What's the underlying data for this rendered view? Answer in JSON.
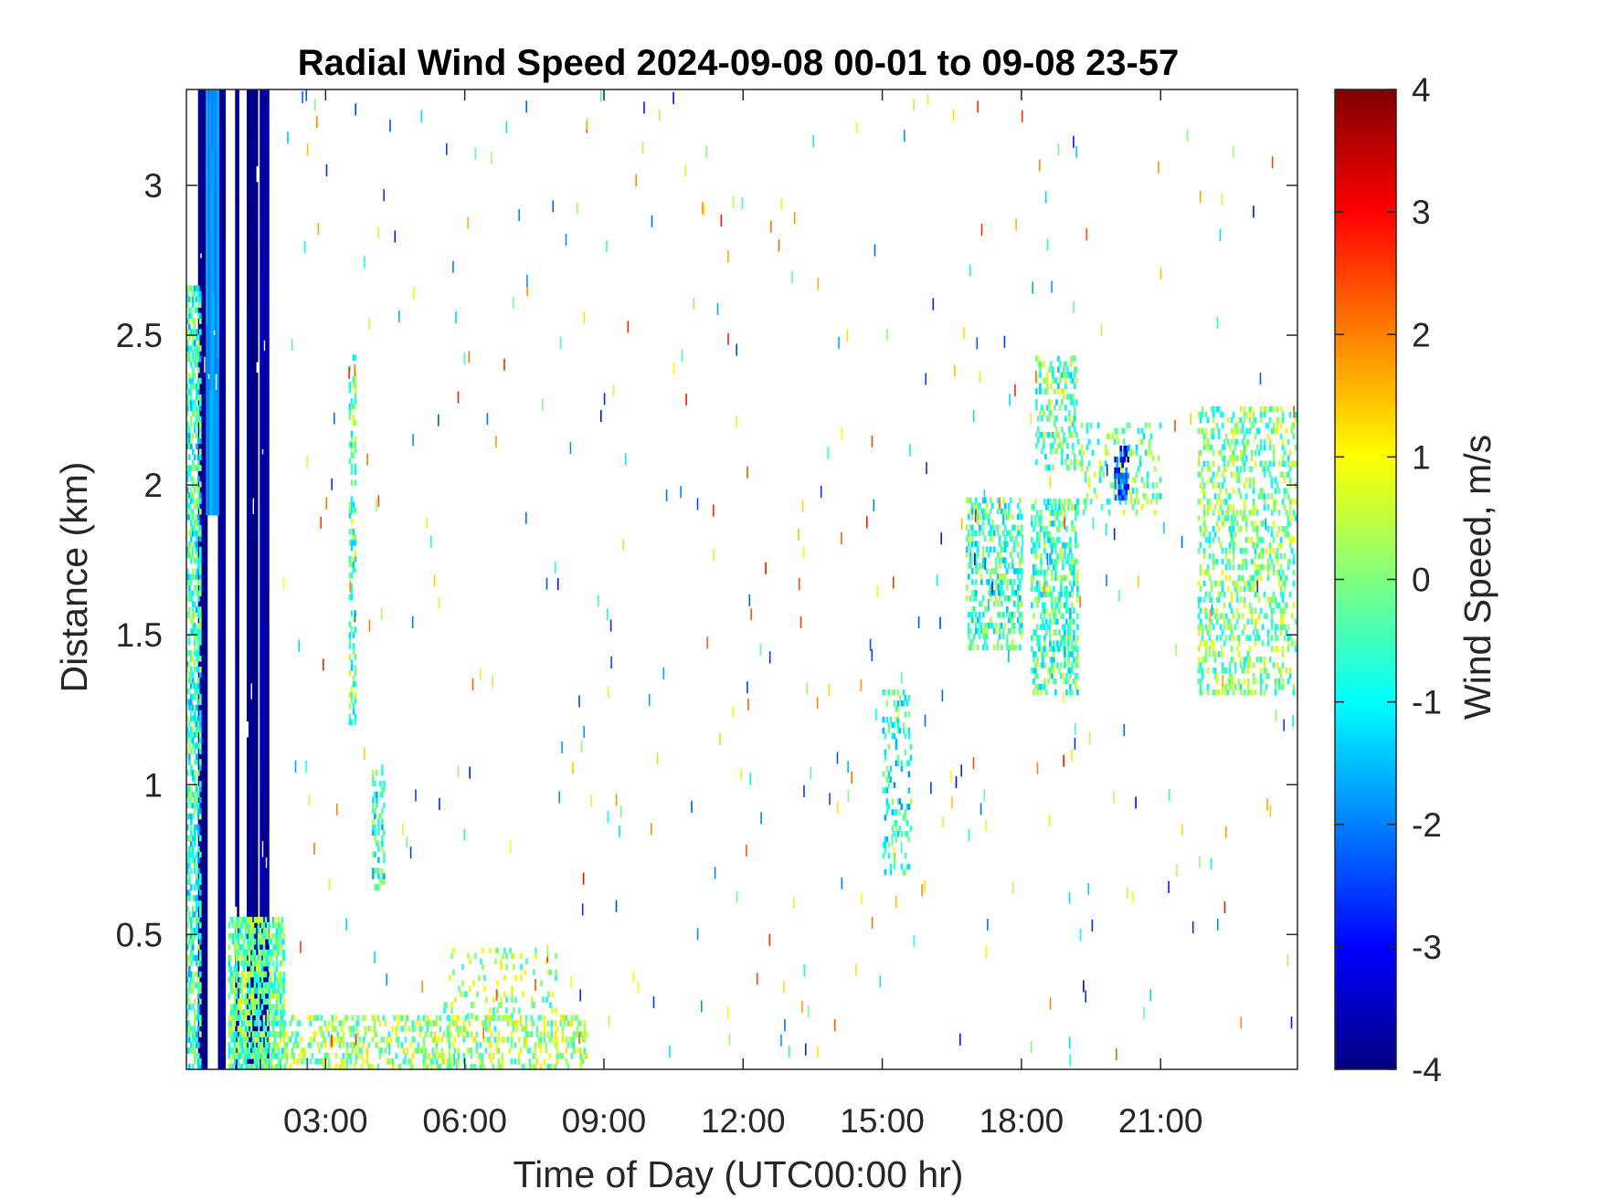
{
  "chart_data": {
    "type": "heatmap",
    "title": "Radial Wind Speed 2024-09-08 00-01 to 09-08 23-57",
    "xlabel": "Time of Day (UTC00:00 hr)",
    "ylabel": "Distance (km)",
    "colorbar_label": "Wind Speed, m/s",
    "xlim_hours": [
      0.0,
      23.95
    ],
    "ylim_km": [
      0.05,
      3.32
    ],
    "clim": [
      -4,
      4
    ],
    "colormap": "jet",
    "x_ticks": [
      {
        "value": 3,
        "label": "03:00"
      },
      {
        "value": 6,
        "label": "06:00"
      },
      {
        "value": 9,
        "label": "09:00"
      },
      {
        "value": 12,
        "label": "12:00"
      },
      {
        "value": 15,
        "label": "15:00"
      },
      {
        "value": 18,
        "label": "18:00"
      },
      {
        "value": 21,
        "label": "21:00"
      }
    ],
    "y_ticks": [
      {
        "value": 0.5,
        "label": "0.5"
      },
      {
        "value": 1,
        "label": "1"
      },
      {
        "value": 1.5,
        "label": "1.5"
      },
      {
        "value": 2,
        "label": "2"
      },
      {
        "value": 2.5,
        "label": "2.5"
      },
      {
        "value": 3,
        "label": "3"
      }
    ],
    "colorbar_ticks": [
      {
        "value": 4,
        "label": "4"
      },
      {
        "value": 3,
        "label": "3"
      },
      {
        "value": 2,
        "label": "2"
      },
      {
        "value": 1,
        "label": "1"
      },
      {
        "value": 0,
        "label": "0"
      },
      {
        "value": -1,
        "label": "-1"
      },
      {
        "value": -2,
        "label": "-2"
      },
      {
        "value": -3,
        "label": "-3"
      },
      {
        "value": -4,
        "label": "-4"
      }
    ],
    "strong_bands": [
      {
        "t0": 0.25,
        "t1": 0.42,
        "d0": 0.05,
        "d1": 3.32,
        "v": -3.9
      },
      {
        "t0": 0.68,
        "t1": 0.8,
        "d0": 0.05,
        "d1": 3.32,
        "v": -3.8
      },
      {
        "t0": 1.05,
        "t1": 1.12,
        "d0": 0.05,
        "d1": 3.32,
        "v": -3.9
      },
      {
        "t0": 1.3,
        "t1": 1.52,
        "d0": 0.05,
        "d1": 3.32,
        "v": -3.95
      },
      {
        "t0": 1.58,
        "t1": 1.75,
        "d0": 0.05,
        "d1": 3.32,
        "v": -3.7
      },
      {
        "t0": 0.42,
        "t1": 0.68,
        "d0": 1.9,
        "d1": 3.32,
        "v": -1.8
      }
    ],
    "clusters": [
      {
        "t0": 0.0,
        "t1": 0.3,
        "d0": 0.05,
        "d1": 2.65,
        "v": -0.6,
        "density": 0.55
      },
      {
        "t0": 0.9,
        "t1": 2.1,
        "d0": 0.05,
        "d1": 0.55,
        "v": -0.2,
        "density": 0.7
      },
      {
        "t0": 2.1,
        "t1": 8.6,
        "d0": 0.05,
        "d1": 0.22,
        "v": 0.2,
        "density": 0.35
      },
      {
        "t0": 5.5,
        "t1": 8.0,
        "d0": 0.22,
        "d1": 0.45,
        "v": 0.1,
        "density": 0.12
      },
      {
        "t0": 3.5,
        "t1": 3.65,
        "d0": 1.2,
        "d1": 2.42,
        "v": -0.3,
        "density": 0.4
      },
      {
        "t0": 4.0,
        "t1": 4.25,
        "d0": 0.65,
        "d1": 1.05,
        "v": -0.6,
        "density": 0.35
      },
      {
        "t0": 15.0,
        "t1": 15.6,
        "d0": 0.7,
        "d1": 1.3,
        "v": -0.8,
        "density": 0.2
      },
      {
        "t0": 16.8,
        "t1": 18.0,
        "d0": 1.45,
        "d1": 1.95,
        "v": -0.5,
        "density": 0.4
      },
      {
        "t0": 18.2,
        "t1": 19.2,
        "d0": 1.3,
        "d1": 1.95,
        "v": -0.4,
        "density": 0.45
      },
      {
        "t0": 18.3,
        "t1": 19.2,
        "d0": 2.05,
        "d1": 2.42,
        "v": -0.3,
        "density": 0.35
      },
      {
        "t0": 19.2,
        "t1": 21.0,
        "d0": 1.9,
        "d1": 2.2,
        "v": -0.2,
        "density": 0.2
      },
      {
        "t0": 20.0,
        "t1": 20.3,
        "d0": 1.95,
        "d1": 2.12,
        "v": -2.6,
        "density": 0.6
      },
      {
        "t0": 21.8,
        "t1": 23.9,
        "d0": 1.3,
        "d1": 2.25,
        "v": -0.1,
        "density": 0.3
      }
    ]
  }
}
